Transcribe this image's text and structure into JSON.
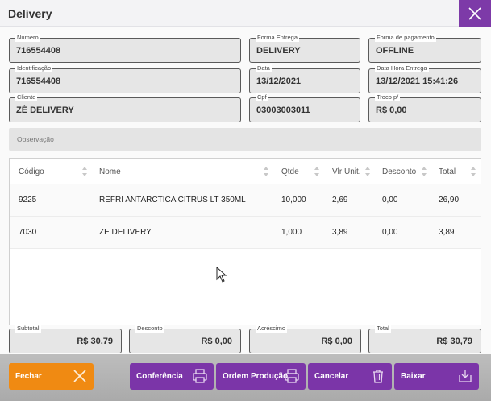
{
  "window": {
    "title": "Delivery"
  },
  "fields": {
    "numero": {
      "label": "Número",
      "value": "716554408"
    },
    "forma_entrega": {
      "label": "Forma Entrega",
      "value": "DELIVERY"
    },
    "forma_pagamento": {
      "label": "Forma de pagamento",
      "value": "OFFLINE"
    },
    "identificacao": {
      "label": "Identificação",
      "value": "716554408"
    },
    "data": {
      "label": "Data",
      "value": "13/12/2021"
    },
    "data_hora_entrega": {
      "label": "Data Hora Entrega",
      "value": "13/12/2021 15:41:26"
    },
    "cliente": {
      "label": "Cliente",
      "value": "ZÉ DELIVERY"
    },
    "cpf": {
      "label": "Cpf",
      "value": "03003003011"
    },
    "troco": {
      "label": "Troco p/",
      "value": "R$ 0,00"
    }
  },
  "observacao": {
    "placeholder": "Observação"
  },
  "table": {
    "columns": [
      "Código",
      "Nome",
      "Qtde",
      "Vlr Unit.",
      "Desconto",
      "Total"
    ],
    "rows": [
      [
        "9225",
        "REFRI ANTARCTICA CITRUS LT 350ML",
        "10,000",
        "2,69",
        "0,00",
        "26,90"
      ],
      [
        "7030",
        "ZE DELIVERY",
        "1,000",
        "3,89",
        "0,00",
        "3,89"
      ]
    ]
  },
  "totals": {
    "subtotal": {
      "label": "Subtotal",
      "value": "R$ 30,79"
    },
    "desconto": {
      "label": "Desconto",
      "value": "R$ 0,00"
    },
    "acrescimo": {
      "label": "Acréscimo",
      "value": "R$ 0,00"
    },
    "total": {
      "label": "Total",
      "value": "R$ 30,79"
    }
  },
  "buttons": {
    "fechar": {
      "label": "Fechar",
      "icon": "close-icon"
    },
    "conferencia": {
      "label": "Conferência",
      "icon": "printer-icon"
    },
    "ordem_producao": {
      "label": "Ordem Produção",
      "icon": "printer-icon"
    },
    "cancelar": {
      "label": "Cancelar",
      "icon": "trash-icon"
    },
    "baixar": {
      "label": "Baixar",
      "icon": "download-icon"
    }
  },
  "colors": {
    "accent_purple": "#7b35a8",
    "accent_orange": "#f08a12"
  }
}
